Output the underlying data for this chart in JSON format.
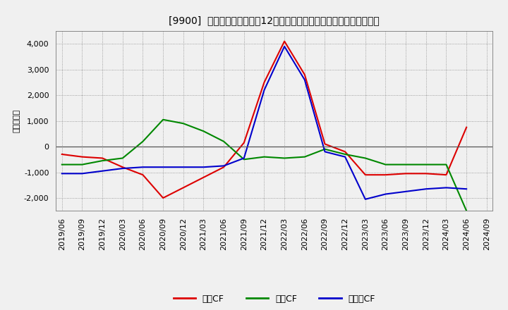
{
  "title": "[9900]  キャッシュフローの12か月移動合計の対前年同期増減額の推移",
  "ylabel": "（百万円）",
  "background_color": "#f0f0f0",
  "plot_background_color": "#f0f0f0",
  "grid_color": "#888888",
  "x_labels": [
    "2019/06",
    "2019/09",
    "2019/12",
    "2020/03",
    "2020/06",
    "2020/09",
    "2020/12",
    "2021/03",
    "2021/06",
    "2021/09",
    "2021/12",
    "2022/03",
    "2022/06",
    "2022/09",
    "2022/12",
    "2023/03",
    "2023/06",
    "2023/09",
    "2023/12",
    "2024/03",
    "2024/06",
    "2024/09"
  ],
  "eigyo_cf": [
    -300,
    -400,
    -450,
    -800,
    -1100,
    -2000,
    -1600,
    -1200,
    -800,
    150,
    2500,
    4100,
    2800,
    100,
    -200,
    -1100,
    -1100,
    -1050,
    -1050,
    -1100,
    750,
    null
  ],
  "toshi_cf": [
    -700,
    -700,
    -550,
    -450,
    200,
    1050,
    900,
    600,
    200,
    -500,
    -400,
    -450,
    -400,
    -100,
    -300,
    -450,
    -700,
    -700,
    -700,
    -700,
    -2500,
    null
  ],
  "free_cf": [
    -1050,
    -1050,
    -950,
    -850,
    -800,
    -800,
    -800,
    -800,
    -750,
    -450,
    2200,
    3900,
    2600,
    -200,
    -400,
    -2050,
    -1850,
    -1750,
    -1650,
    -1600,
    -1650,
    null
  ],
  "eigyo_color": "#dd0000",
  "toshi_color": "#008800",
  "free_color": "#0000cc",
  "ylim_min": -2500,
  "ylim_max": 4500,
  "yticks": [
    -2000,
    -1000,
    0,
    1000,
    2000,
    3000,
    4000
  ],
  "legend_labels": [
    "営業CF",
    "投資CF",
    "フリーCF"
  ]
}
